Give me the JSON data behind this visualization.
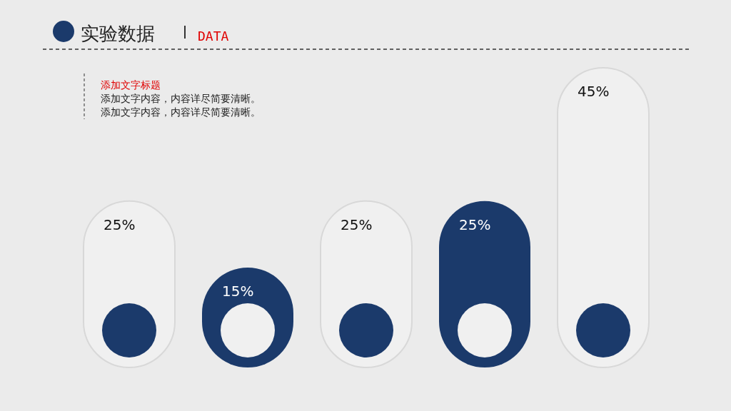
{
  "chart_data": {
    "type": "bar",
    "title": "实验数据",
    "subtitle": "DATA",
    "annotations": [
      "添加文字标题",
      "添加文字内容，内容详尽简要清晰。",
      "添加文字内容，内容详尽简要清晰。"
    ],
    "categories": [
      null,
      null,
      null,
      null,
      null
    ],
    "values": [
      25,
      15,
      25,
      25,
      45
    ],
    "colors": [
      "#f0f0f0",
      "#1b3a6b",
      "#f0f0f0",
      "#1b3a6b",
      "#f0f0f0"
    ],
    "value_labels": [
      "25%",
      "15%",
      "25%",
      "25%",
      "45%"
    ]
  }
}
